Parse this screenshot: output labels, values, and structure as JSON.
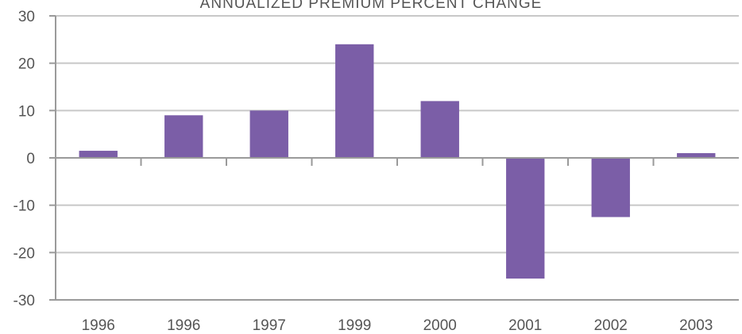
{
  "chart_data": {
    "type": "bar",
    "title": "ANNUALIZED PREMIUM PERCENT CHANGE",
    "xlabel": "",
    "ylabel": "",
    "categories": [
      "1996",
      "1996",
      "1997",
      "1999",
      "2000",
      "2001",
      "2002",
      "2003"
    ],
    "values": [
      1.5,
      9,
      10,
      24,
      12,
      -25.5,
      -12.5,
      1
    ],
    "ylim": [
      -30,
      30
    ],
    "yticks": [
      "30",
      "20",
      "10",
      "0",
      "-10",
      "-20",
      "-30"
    ],
    "grid": true,
    "legend": "none",
    "bar_color": "#7b5ea7",
    "grid_color": "#c8c8c8",
    "axis_color": "#9a9a9a"
  }
}
